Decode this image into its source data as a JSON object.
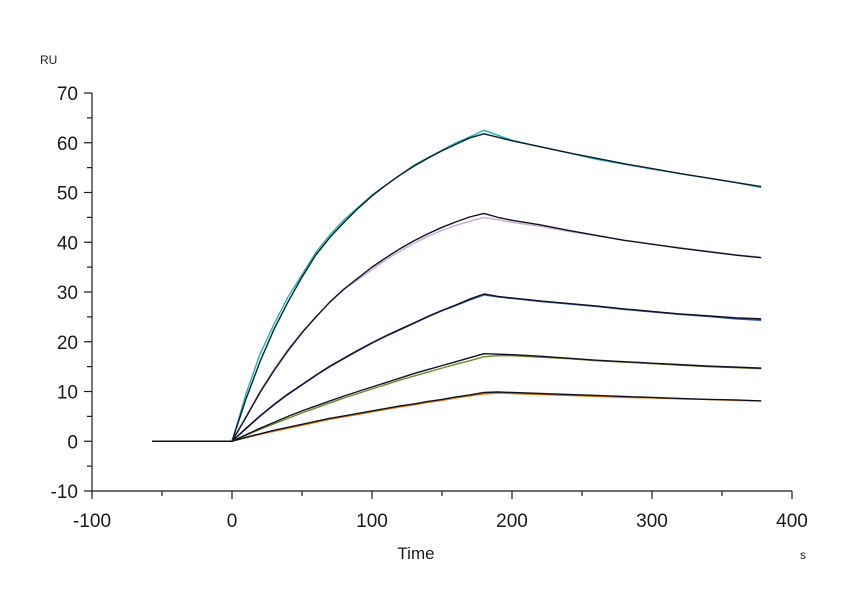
{
  "chart_data": {
    "type": "line",
    "title": "",
    "ylabel": "RU",
    "xlabel": "Time",
    "x_unit": "s",
    "xlim": [
      -100,
      400
    ],
    "ylim": [
      -10,
      70
    ],
    "x_ticks": [
      -100,
      0,
      100,
      200,
      300,
      400
    ],
    "y_ticks": [
      -10,
      0,
      10,
      20,
      30,
      40,
      50,
      60,
      70
    ],
    "x_minor_step": 50,
    "y_minor_step": 5,
    "grid": false,
    "legend": "none",
    "series": [
      {
        "color": "#1cb5b5",
        "x": [
          -57,
          0,
          10,
          20,
          30,
          40,
          50,
          60,
          70,
          80,
          90,
          100,
          110,
          120,
          130,
          140,
          150,
          160,
          170,
          180,
          190,
          200,
          220,
          240,
          260,
          280,
          300,
          320,
          340,
          360,
          378
        ],
        "y": [
          0,
          0,
          9.5,
          17.5,
          23.5,
          29,
          33.5,
          38,
          41.5,
          44.5,
          47,
          49.5,
          51.5,
          53.5,
          55.5,
          57,
          58.5,
          60,
          61.2,
          62.5,
          61.5,
          60.5,
          59.2,
          58,
          56.7,
          55.7,
          54.7,
          53.8,
          52.9,
          52,
          51
        ]
      },
      {
        "color": "#0f1a2e",
        "x": [
          -57,
          0,
          10,
          20,
          30,
          40,
          50,
          60,
          70,
          80,
          90,
          100,
          110,
          120,
          130,
          140,
          150,
          160,
          170,
          180,
          190,
          200,
          220,
          240,
          260,
          280,
          300,
          320,
          340,
          360,
          378
        ],
        "y": [
          0,
          0,
          8.5,
          16,
          22.5,
          28,
          33,
          37.5,
          41,
          44,
          46.8,
          49.3,
          51.5,
          53.5,
          55.3,
          56.9,
          58.4,
          59.7,
          61,
          61.8,
          61.1,
          60.4,
          59.2,
          58,
          56.9,
          55.8,
          54.8,
          53.8,
          52.9,
          52,
          51.2
        ]
      },
      {
        "color": "#c8a8d8",
        "x": [
          -57,
          0,
          10,
          20,
          30,
          40,
          50,
          60,
          70,
          80,
          90,
          100,
          110,
          120,
          130,
          140,
          150,
          160,
          170,
          180,
          190,
          200,
          220,
          240,
          260,
          280,
          300,
          320,
          340,
          360,
          378
        ],
        "y": [
          0,
          0,
          5,
          10,
          14.5,
          18.5,
          22,
          25,
          28,
          30.5,
          32.5,
          34.5,
          36.5,
          38.2,
          39.8,
          41.2,
          42.4,
          43.4,
          44.2,
          45,
          44.5,
          44,
          43.2,
          42.2,
          41.3,
          40.4,
          39.6,
          38.9,
          38.2,
          37.5,
          37
        ]
      },
      {
        "color": "#111122",
        "x": [
          -57,
          0,
          10,
          20,
          30,
          40,
          50,
          60,
          70,
          80,
          90,
          100,
          110,
          120,
          130,
          140,
          150,
          160,
          170,
          180,
          190,
          200,
          220,
          240,
          260,
          280,
          300,
          320,
          340,
          360,
          378
        ],
        "y": [
          0,
          0,
          4.8,
          9.8,
          14.2,
          18.2,
          21.8,
          25,
          28,
          30.6,
          32.8,
          35,
          36.9,
          38.7,
          40.3,
          41.7,
          43,
          44.1,
          45.1,
          45.8,
          45,
          44.4,
          43.5,
          42.4,
          41.4,
          40.4,
          39.6,
          38.8,
          38.1,
          37.4,
          36.9
        ]
      },
      {
        "color": "#2f59b8",
        "x": [
          -57,
          0,
          10,
          20,
          30,
          40,
          50,
          60,
          70,
          80,
          90,
          100,
          110,
          120,
          130,
          140,
          150,
          160,
          170,
          180,
          190,
          200,
          220,
          240,
          260,
          280,
          300,
          320,
          340,
          360,
          378
        ],
        "y": [
          0,
          0,
          2.5,
          5,
          7.3,
          9.4,
          11.3,
          13.2,
          15,
          16.6,
          18.2,
          19.7,
          21.1,
          22.4,
          23.7,
          25,
          26.2,
          27.3,
          28.4,
          29.4,
          29,
          28.7,
          28.1,
          27.6,
          27.1,
          26.5,
          26,
          25.5,
          25.1,
          24.6,
          24.3
        ]
      },
      {
        "color": "#111122",
        "x": [
          -57,
          0,
          10,
          20,
          30,
          40,
          50,
          60,
          70,
          80,
          90,
          100,
          110,
          120,
          130,
          140,
          150,
          160,
          170,
          180,
          190,
          200,
          220,
          240,
          260,
          280,
          300,
          320,
          340,
          360,
          378
        ],
        "y": [
          0,
          0,
          2.6,
          5.1,
          7.4,
          9.5,
          11.4,
          13.3,
          15.1,
          16.7,
          18.3,
          19.8,
          21.2,
          22.5,
          23.8,
          25.1,
          26.3,
          27.4,
          28.6,
          29.6,
          29.1,
          28.8,
          28.2,
          27.7,
          27.2,
          26.6,
          26.1,
          25.6,
          25.2,
          24.8,
          24.6
        ]
      },
      {
        "color": "#6a8a2a",
        "x": [
          -57,
          0,
          10,
          20,
          30,
          40,
          50,
          60,
          70,
          80,
          90,
          100,
          110,
          120,
          130,
          140,
          150,
          160,
          170,
          180,
          190,
          200,
          220,
          240,
          260,
          280,
          300,
          320,
          340,
          360,
          378
        ],
        "y": [
          0,
          0,
          1.2,
          2.4,
          3.5,
          4.6,
          5.7,
          6.7,
          7.7,
          8.7,
          9.6,
          10.5,
          11.4,
          12.3,
          13.1,
          13.9,
          14.7,
          15.5,
          16.2,
          17,
          17.2,
          17.2,
          16.9,
          16.6,
          16.2,
          15.9,
          15.6,
          15.3,
          15,
          14.8,
          14.6
        ]
      },
      {
        "color": "#111122",
        "x": [
          -57,
          0,
          10,
          20,
          30,
          40,
          50,
          60,
          70,
          80,
          90,
          100,
          110,
          120,
          130,
          140,
          150,
          160,
          170,
          180,
          190,
          200,
          220,
          240,
          260,
          280,
          300,
          320,
          340,
          360,
          378
        ],
        "y": [
          0,
          0,
          1.3,
          2.6,
          3.8,
          5,
          6.1,
          7.1,
          8.1,
          9.1,
          10,
          10.9,
          11.8,
          12.7,
          13.6,
          14.4,
          15.2,
          16,
          16.8,
          17.6,
          17.5,
          17.4,
          17.1,
          16.7,
          16.3,
          16,
          15.7,
          15.4,
          15.1,
          14.9,
          14.7
        ]
      },
      {
        "color": "#e07a10",
        "x": [
          -57,
          0,
          10,
          20,
          30,
          40,
          50,
          60,
          70,
          80,
          90,
          100,
          110,
          120,
          130,
          140,
          150,
          160,
          170,
          180,
          190,
          200,
          220,
          240,
          260,
          280,
          300,
          320,
          340,
          360,
          378
        ],
        "y": [
          0,
          0,
          0.7,
          1.4,
          2,
          2.6,
          3.2,
          3.8,
          4.4,
          4.9,
          5.4,
          5.9,
          6.4,
          6.9,
          7.3,
          7.8,
          8.2,
          8.7,
          9.1,
          9.5,
          9.7,
          9.6,
          9.4,
          9.2,
          9,
          8.8,
          8.7,
          8.5,
          8.4,
          8.2,
          8.1
        ]
      },
      {
        "color": "#111122",
        "x": [
          -57,
          0,
          10,
          20,
          30,
          40,
          50,
          60,
          70,
          80,
          90,
          100,
          110,
          120,
          130,
          140,
          150,
          160,
          170,
          180,
          190,
          200,
          220,
          240,
          260,
          280,
          300,
          320,
          340,
          360,
          378
        ],
        "y": [
          0,
          0,
          0.8,
          1.5,
          2.2,
          2.8,
          3.4,
          4,
          4.6,
          5.1,
          5.6,
          6.1,
          6.6,
          7.1,
          7.5,
          8,
          8.4,
          8.9,
          9.3,
          9.8,
          9.9,
          9.8,
          9.6,
          9.4,
          9.2,
          9,
          8.8,
          8.6,
          8.4,
          8.3,
          8.1
        ]
      }
    ]
  }
}
